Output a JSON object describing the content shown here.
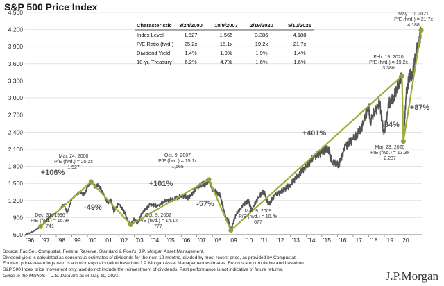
{
  "title": "S&P 500 Price Index",
  "chart_data": {
    "type": "line",
    "title": "S&P 500 Price Index",
    "ylim": [
      600,
      4500
    ],
    "yticks": [
      600,
      900,
      1200,
      1500,
      1800,
      2100,
      2400,
      2700,
      3000,
      3300,
      3600,
      3900,
      4200,
      4500
    ],
    "ytick_labels": [
      "600",
      "900",
      "1,200",
      "1,500",
      "1,800",
      "2,100",
      "2,400",
      "2,700",
      "3,000",
      "3,300",
      "3,600",
      "3,900",
      "4,200",
      "4,500"
    ],
    "xlim": [
      1996,
      2021.4
    ],
    "xticks": [
      1996,
      1997,
      1998,
      1999,
      2000,
      2001,
      2002,
      2003,
      2004,
      2005,
      2006,
      2007,
      2008,
      2009,
      2010,
      2011,
      2012,
      2013,
      2014,
      2015,
      2016,
      2017,
      2018,
      2019,
      2020
    ],
    "xtick_labels": [
      "'96",
      "'97",
      "'98",
      "'99",
      "'00",
      "'01",
      "'02",
      "'03",
      "'04",
      "'05",
      "'06",
      "'07",
      "'08",
      "'09",
      "'10",
      "'11",
      "'12",
      "'13",
      "'14",
      "'15",
      "'16",
      "'17",
      "'18",
      "'19",
      "'20"
    ],
    "series": [
      {
        "name": "S&P 500 Price Index",
        "points": [
          [
            1996.0,
            600
          ],
          [
            1996.5,
            650
          ],
          [
            1997.0,
            741
          ],
          [
            1997.5,
            900
          ],
          [
            1997.8,
            950
          ],
          [
            1998.0,
            980
          ],
          [
            1998.5,
            1130
          ],
          [
            1998.7,
            980
          ],
          [
            1999.0,
            1230
          ],
          [
            1999.5,
            1350
          ],
          [
            1999.8,
            1300
          ],
          [
            2000.0,
            1430
          ],
          [
            2000.23,
            1527
          ],
          [
            2000.5,
            1450
          ],
          [
            2000.7,
            1470
          ],
          [
            2001.0,
            1330
          ],
          [
            2001.3,
            1150
          ],
          [
            2001.5,
            1210
          ],
          [
            2001.7,
            1000
          ],
          [
            2002.0,
            1150
          ],
          [
            2002.4,
            980
          ],
          [
            2002.55,
            850
          ],
          [
            2002.77,
            777
          ],
          [
            2003.0,
            880
          ],
          [
            2003.2,
            800
          ],
          [
            2003.5,
            980
          ],
          [
            2004.0,
            1130
          ],
          [
            2004.5,
            1100
          ],
          [
            2005.0,
            1200
          ],
          [
            2005.5,
            1220
          ],
          [
            2006.0,
            1280
          ],
          [
            2006.5,
            1250
          ],
          [
            2007.0,
            1420
          ],
          [
            2007.4,
            1500
          ],
          [
            2007.5,
            1480
          ],
          [
            2007.77,
            1565
          ],
          [
            2008.0,
            1400
          ],
          [
            2008.5,
            1280
          ],
          [
            2008.75,
            1000
          ],
          [
            2008.9,
            850
          ],
          [
            2009.0,
            880
          ],
          [
            2009.18,
            677
          ],
          [
            2009.5,
            950
          ],
          [
            2010.0,
            1130
          ],
          [
            2010.3,
            1200
          ],
          [
            2010.5,
            1030
          ],
          [
            2011.0,
            1280
          ],
          [
            2011.3,
            1360
          ],
          [
            2011.6,
            1120
          ],
          [
            2012.0,
            1300
          ],
          [
            2012.5,
            1370
          ],
          [
            2013.0,
            1480
          ],
          [
            2013.5,
            1650
          ],
          [
            2014.0,
            1800
          ],
          [
            2014.5,
            1960
          ],
          [
            2015.0,
            2050
          ],
          [
            2015.4,
            2120
          ],
          [
            2015.65,
            1880
          ],
          [
            2016.1,
            1830
          ],
          [
            2016.5,
            2150
          ],
          [
            2017.0,
            2270
          ],
          [
            2017.5,
            2450
          ],
          [
            2018.0,
            2850
          ],
          [
            2018.1,
            2600
          ],
          [
            2018.7,
            2930
          ],
          [
            2018.97,
            2350
          ],
          [
            2019.3,
            2900
          ],
          [
            2019.6,
            3000
          ],
          [
            2019.9,
            3250
          ],
          [
            2020.13,
            3386
          ],
          [
            2020.22,
            2237
          ],
          [
            2020.4,
            3050
          ],
          [
            2020.6,
            3400
          ],
          [
            2020.8,
            3400
          ],
          [
            2021.0,
            3750
          ],
          [
            2021.25,
            4000
          ],
          [
            2021.36,
            4188
          ]
        ]
      }
    ],
    "trend_lines": [
      {
        "from": [
          1996.99,
          741
        ],
        "to": [
          2000.23,
          1527
        ]
      },
      {
        "from": [
          2000.23,
          1527
        ],
        "to": [
          2002.77,
          777
        ]
      },
      {
        "from": [
          2002.77,
          777
        ],
        "to": [
          2007.77,
          1565
        ]
      },
      {
        "from": [
          2007.77,
          1565
        ],
        "to": [
          2009.18,
          677
        ]
      },
      {
        "from": [
          2009.18,
          677
        ],
        "to": [
          2020.13,
          3386
        ]
      },
      {
        "from": [
          2020.13,
          3386
        ],
        "to": [
          2020.22,
          2237
        ]
      },
      {
        "from": [
          2020.22,
          2237
        ],
        "to": [
          2021.36,
          4188
        ]
      }
    ],
    "annotations": [
      {
        "lines": [
          "Dec. 31, 1996",
          "P/E (fwd.) = 15.9x",
          "741"
        ]
      },
      {
        "lines": [
          "Mar. 24, 2000",
          "P/E (fwd.) = 25.2x",
          "1,527"
        ]
      },
      {
        "lines": [
          "Oct. 9, 2002",
          "P/E (fwd.) = 14.1x",
          "777"
        ]
      },
      {
        "lines": [
          "Oct. 9, 2007",
          "P/E (fwd.) = 15.1x",
          "1,565"
        ]
      },
      {
        "lines": [
          "Mar. 9, 2009",
          "P/E (fwd.) = 10.4x",
          "677"
        ]
      },
      {
        "lines": [
          "Feb. 19, 2020",
          "P/E (fwd.) = 19.2x",
          "3,386"
        ]
      },
      {
        "lines": [
          "Mar. 23, 2020",
          "P/E (fwd.) = 13.3x",
          "2,237"
        ]
      },
      {
        "lines": [
          "May. 10, 2021",
          "P/E (fwd.) = 21.7x",
          "4,188"
        ]
      }
    ],
    "pct_labels": [
      "+106%",
      "-49%",
      "+101%",
      "-57%",
      "+401%",
      "-34%",
      "+87%"
    ],
    "table": {
      "headers": [
        "Characteristic",
        "3/24/2000",
        "10/9/2007",
        "2/19/2020",
        "5/10/2021"
      ],
      "rows": [
        [
          "Index Level",
          "1,527",
          "1,565",
          "3,386",
          "4,188"
        ],
        [
          "P/E Ratio (fwd.)",
          "25.2x",
          "15.1x",
          "19.2x",
          "21.7x"
        ],
        [
          "Dividend Yield",
          "1.4%",
          "1.9%",
          "1.9%",
          "1.4%"
        ],
        [
          "10-yr. Treasury",
          "6.2%",
          "4.7%",
          "1.6%",
          "1.6%"
        ]
      ]
    }
  },
  "footer": [
    "Source: FactSet, Compustat, Federal Reserve, Standard & Poor's, J.P. Morgan Asset Management.",
    "Dividend yield is calculated as consensus estimates of dividends for the next 12 months, divided by most recent price, as provided by Compustat.",
    "Forward price-to-earnings ratio is a bottom-up calculation based on J.P. Morgan Asset Management estimates. Returns are cumulative and based on",
    "S&P 500 Index price movement only, and do not include the reinvestment of dividends. Past performance is not indicative of future returns.",
    "Guide to the Markets – U.S. Data are as of May 10, 2021."
  ],
  "brand": "J.P.Morgan",
  "colors": {
    "index_line": "#555555",
    "trend": "#9aae3c",
    "marker": "#8da23a",
    "grid": "#d0d0d0"
  }
}
